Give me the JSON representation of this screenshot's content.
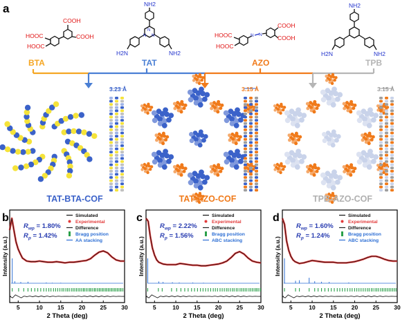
{
  "figure": {
    "panel_labels": {
      "a": "a",
      "b": "b",
      "c": "c",
      "d": "d"
    },
    "colors": {
      "bta": "#f5a623",
      "tat": "#4a7fd4",
      "azo": "#f07a1a",
      "tpb": "#b5b5b5",
      "cof1": "#3b62c9",
      "cof2": "#f07a1a",
      "cof3": "#a9a9a9",
      "simulated": "#111111",
      "experimental": "#e23b3b",
      "difference": "#222222",
      "bragg": "#2ba04a",
      "stacking": "#2c6ed4",
      "annotation": "#2a3eb1",
      "amino": "#2233cc",
      "acid": "#e01010",
      "triazine": "#2233cc"
    },
    "monomers": {
      "bta": {
        "label": "BTA",
        "groups": [
          "HOOC",
          "HOOC",
          "COOH",
          "COOH"
        ]
      },
      "tat": {
        "label": "TAT",
        "groups": [
          "NH2",
          "H2N",
          "NH2"
        ],
        "ring_atoms": [
          "N",
          "N",
          "N"
        ]
      },
      "azo": {
        "label": "AZO",
        "groups": [
          "HOOC",
          "HOOC",
          "COOH",
          "COOH"
        ],
        "azo_atoms": [
          "N",
          "N"
        ]
      },
      "tpb": {
        "label": "TPB",
        "groups": [
          "NH2",
          "H2N",
          "NH2"
        ]
      }
    },
    "cofs": [
      {
        "name": "TAT-BTA-COF",
        "spacing": "3.23 Å"
      },
      {
        "name": "TAT-AZO-COF",
        "spacing": "3.15 Å"
      },
      {
        "name": "TPB-AZO-COF",
        "spacing": "3.15 Å"
      }
    ],
    "legend": {
      "simulated": "Simulated",
      "experimental": "Experimental",
      "difference": "Difference",
      "bragg": "Bragg position"
    },
    "pxrd_axes": {
      "ylabel": "Intensity (a.u.)",
      "xlabel": "2 Theta (deg)",
      "ticks": [
        "5",
        "10",
        "15",
        "20",
        "25",
        "30"
      ]
    }
  },
  "chart_data": [
    {
      "type": "line",
      "panel": "b",
      "xlabel": "2 Theta (deg)",
      "ylabel": "Intensity (a.u.)",
      "xlim": [
        3,
        30
      ],
      "r_wp": "1.80%",
      "r_p": "1.42%",
      "stacking": "AA stacking",
      "series": [
        {
          "name": "Experimental",
          "x": [
            3,
            3.5,
            4,
            4.5,
            5,
            5.5,
            6,
            7,
            8,
            9,
            10,
            11,
            12,
            13,
            14,
            15,
            16,
            17,
            18,
            19,
            20,
            21,
            22,
            23,
            24,
            25,
            26,
            27,
            28,
            29,
            30
          ],
          "y": [
            0.8,
            1.0,
            0.8,
            0.6,
            0.48,
            0.4,
            0.33,
            0.28,
            0.27,
            0.27,
            0.28,
            0.27,
            0.26,
            0.26,
            0.27,
            0.26,
            0.25,
            0.26,
            0.26,
            0.27,
            0.28,
            0.29,
            0.32,
            0.38,
            0.43,
            0.45,
            0.42,
            0.35,
            0.3,
            0.28,
            0.28
          ]
        }
      ],
      "sim_peaks": [
        [
          3.6,
          1.0
        ],
        [
          4.2,
          0.08
        ],
        [
          5.6,
          0.05
        ],
        [
          7.3,
          0.06
        ],
        [
          11.6,
          0.03
        ],
        [
          13.0,
          0.02
        ],
        [
          15.0,
          0.02
        ]
      ],
      "bragg_positions": [
        3.6,
        5.1,
        6.3,
        7.3,
        8.1,
        8.9,
        9.6,
        10.3,
        11.0,
        11.6,
        12.2,
        12.7,
        13.3,
        13.8,
        14.3,
        14.8,
        15.3,
        15.7,
        16.2,
        16.6,
        17.0,
        17.5,
        17.9,
        18.3,
        18.7,
        19.1,
        19.5,
        19.9,
        20.3,
        20.6,
        21.0,
        21.4,
        21.8,
        22.1,
        22.5,
        22.9,
        23.2,
        23.6,
        24.0,
        24.3,
        24.7,
        25.0,
        25.4,
        25.7,
        26.1,
        26.4,
        26.8,
        27.1,
        27.5,
        27.8,
        28.2,
        28.5,
        28.9,
        29.2,
        29.6
      ]
    },
    {
      "type": "line",
      "panel": "c",
      "xlabel": "2 Theta (deg)",
      "ylabel": "Intensity (a.u.)",
      "xlim": [
        3,
        30
      ],
      "r_wp": "2.22%",
      "r_p": "1.56%",
      "stacking": "ABC stacking",
      "series": [
        {
          "name": "Experimental",
          "x": [
            3,
            3.5,
            4,
            4.5,
            5,
            5.5,
            6,
            7,
            8,
            9,
            10,
            11,
            12,
            13,
            14,
            15,
            16,
            17,
            18,
            19,
            20,
            21,
            22,
            23,
            24,
            25,
            26,
            27,
            28,
            29,
            30
          ],
          "y": [
            1.0,
            0.95,
            0.7,
            0.5,
            0.38,
            0.3,
            0.26,
            0.23,
            0.22,
            0.22,
            0.22,
            0.24,
            0.23,
            0.22,
            0.21,
            0.21,
            0.2,
            0.2,
            0.21,
            0.22,
            0.23,
            0.25,
            0.28,
            0.34,
            0.41,
            0.44,
            0.4,
            0.33,
            0.28,
            0.26,
            0.25
          ]
        }
      ],
      "sim_peaks": [
        [
          3.4,
          1.0
        ],
        [
          6.0,
          0.07
        ],
        [
          7.0,
          0.05
        ],
        [
          9.2,
          0.04
        ],
        [
          10.8,
          0.03
        ],
        [
          14.0,
          0.03
        ],
        [
          16.5,
          0.02
        ]
      ],
      "bragg_positions": [
        3.4,
        5.9,
        6.8,
        9.0,
        10.2,
        11.2,
        12.1,
        12.9,
        13.7,
        14.4,
        15.1,
        15.8,
        16.4,
        17.0,
        17.6,
        18.2,
        18.8,
        19.3,
        19.8,
        20.4,
        20.9,
        21.4,
        21.9,
        22.3,
        22.8,
        23.3,
        23.7,
        24.2,
        24.6,
        25.1,
        25.5,
        25.9,
        26.3,
        26.7,
        27.2,
        27.6,
        28.0,
        28.4,
        28.8,
        29.1,
        29.5,
        29.9
      ]
    },
    {
      "type": "line",
      "panel": "d",
      "xlabel": "2 Theta (deg)",
      "ylabel": "Intensity (a.u.)",
      "xlim": [
        3,
        30
      ],
      "r_wp": "1.60%",
      "r_p": "1.24%",
      "stacking": "ABC stacking",
      "series": [
        {
          "name": "Experimental",
          "x": [
            3,
            3.5,
            4,
            4.5,
            5,
            5.5,
            6,
            7,
            8,
            9,
            10,
            11,
            12,
            13,
            14,
            15,
            16,
            17,
            18,
            19,
            20,
            21,
            22,
            23,
            24,
            25,
            26,
            27,
            28,
            29,
            30
          ],
          "y": [
            1.0,
            0.9,
            0.62,
            0.46,
            0.36,
            0.3,
            0.27,
            0.24,
            0.25,
            0.27,
            0.29,
            0.28,
            0.27,
            0.26,
            0.26,
            0.26,
            0.25,
            0.25,
            0.25,
            0.26,
            0.27,
            0.29,
            0.31,
            0.34,
            0.36,
            0.36,
            0.34,
            0.31,
            0.29,
            0.28,
            0.28
          ]
        }
      ],
      "sim_peaks": [
        [
          3.5,
          1.0
        ],
        [
          6.1,
          0.1
        ],
        [
          7.0,
          0.12
        ],
        [
          9.3,
          0.22
        ],
        [
          10.6,
          0.08
        ],
        [
          12.2,
          0.06
        ],
        [
          14.0,
          0.05
        ],
        [
          18.6,
          0.03
        ]
      ],
      "bragg_positions": [
        3.5,
        6.1,
        7.0,
        9.3,
        10.6,
        11.4,
        12.2,
        13.0,
        13.8,
        14.5,
        15.2,
        15.9,
        16.5,
        17.1,
        17.7,
        18.3,
        18.9,
        19.4,
        20.0,
        20.5,
        21.0,
        21.5,
        22.0,
        22.5,
        23.0,
        23.4,
        23.9,
        24.3,
        24.8,
        25.2,
        25.6,
        26.1,
        26.5,
        26.9,
        27.3,
        27.7,
        28.1,
        28.5,
        28.9,
        29.3,
        29.7
      ]
    }
  ]
}
